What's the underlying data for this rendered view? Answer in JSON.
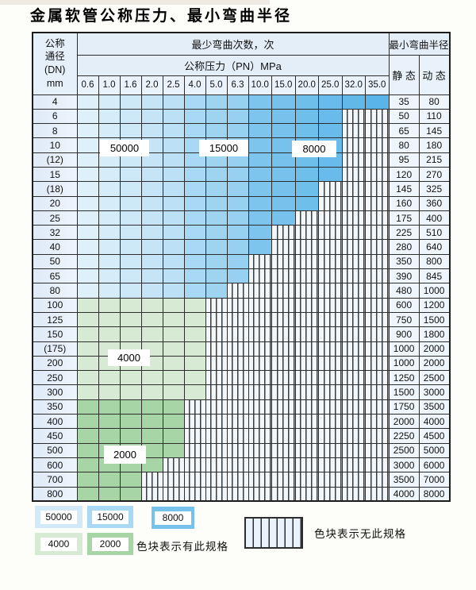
{
  "title": "金属软管公称压力、最小弯曲半径",
  "table": {
    "header": {
      "dn_lines": [
        "公称",
        "通径",
        "(DN)",
        "mm"
      ],
      "bend_cycles_label": "最少弯曲次数，次",
      "pressure_label": "公称压力（PN）MPa",
      "radius_label": "最小弯曲半径",
      "static_label": "静 态",
      "dynamic_label": "动 态",
      "pressures": [
        "0.6",
        "1.0",
        "1.6",
        "2.0",
        "2.5",
        "4.0",
        "5.0",
        "6.3",
        "10.0",
        "15.0",
        "20.0",
        "25.0",
        "32.0",
        "35.0"
      ]
    },
    "rows": [
      {
        "dn": "4",
        "through": 14,
        "zone": "blue",
        "static": "35",
        "dynamic": "80"
      },
      {
        "dn": "6",
        "through": 12,
        "zone": "blue",
        "static": "50",
        "dynamic": "110"
      },
      {
        "dn": "8",
        "through": 12,
        "zone": "blue",
        "static": "65",
        "dynamic": "145"
      },
      {
        "dn": "10",
        "through": 12,
        "zone": "blue",
        "static": "80",
        "dynamic": "180"
      },
      {
        "dn": "(12)",
        "through": 12,
        "zone": "blue",
        "static": "95",
        "dynamic": "215"
      },
      {
        "dn": "15",
        "through": 12,
        "zone": "blue",
        "static": "120",
        "dynamic": "270"
      },
      {
        "dn": "(18)",
        "through": 11,
        "zone": "blue",
        "static": "145",
        "dynamic": "325"
      },
      {
        "dn": "20",
        "through": 11,
        "zone": "blue",
        "static": "160",
        "dynamic": "360"
      },
      {
        "dn": "25",
        "through": 10,
        "zone": "blue",
        "static": "175",
        "dynamic": "400"
      },
      {
        "dn": "32",
        "through": 9,
        "zone": "blue",
        "static": "225",
        "dynamic": "510"
      },
      {
        "dn": "40",
        "through": 9,
        "zone": "blue",
        "static": "280",
        "dynamic": "640"
      },
      {
        "dn": "50",
        "through": 8,
        "zone": "blue",
        "static": "350",
        "dynamic": "800"
      },
      {
        "dn": "65",
        "through": 8,
        "zone": "blue",
        "static": "390",
        "dynamic": "845"
      },
      {
        "dn": "80",
        "through": 7,
        "zone": "blue",
        "static": "480",
        "dynamic": "1000"
      },
      {
        "dn": "100",
        "through": 6,
        "zone": "green-light",
        "static": "600",
        "dynamic": "1200"
      },
      {
        "dn": "125",
        "through": 6,
        "zone": "green-light",
        "static": "750",
        "dynamic": "1500"
      },
      {
        "dn": "150",
        "through": 6,
        "zone": "green-light",
        "static": "900",
        "dynamic": "1800"
      },
      {
        "dn": "(175)",
        "through": 6,
        "zone": "green-light",
        "static": "1000",
        "dynamic": "2000"
      },
      {
        "dn": "200",
        "through": 6,
        "zone": "green-light",
        "static": "1000",
        "dynamic": "2000"
      },
      {
        "dn": "250",
        "through": 6,
        "zone": "green-light",
        "static": "1250",
        "dynamic": "2500"
      },
      {
        "dn": "300",
        "through": 6,
        "zone": "green-light",
        "static": "1500",
        "dynamic": "3000"
      },
      {
        "dn": "350",
        "through": 5,
        "zone": "green-dark",
        "static": "1750",
        "dynamic": "3500"
      },
      {
        "dn": "400",
        "through": 5,
        "zone": "green-dark",
        "static": "2000",
        "dynamic": "4000"
      },
      {
        "dn": "450",
        "through": 5,
        "zone": "green-dark",
        "static": "2250",
        "dynamic": "4500"
      },
      {
        "dn": "500",
        "through": 5,
        "zone": "green-dark",
        "static": "2500",
        "dynamic": "5000"
      },
      {
        "dn": "600",
        "through": 4,
        "zone": "green-dark",
        "static": "3000",
        "dynamic": "6000"
      },
      {
        "dn": "700",
        "through": 3,
        "zone": "green-dark",
        "static": "3500",
        "dynamic": "7000"
      },
      {
        "dn": "800",
        "through": 3,
        "zone": "green-dark",
        "static": "4000",
        "dynamic": "8000"
      }
    ]
  },
  "zone_labels": [
    {
      "text": "50000"
    },
    {
      "text": "15000"
    },
    {
      "text": "8000"
    },
    {
      "text": "4000"
    },
    {
      "text": "2000"
    }
  ],
  "colors": {
    "cycles_50000": "#d2e9f8",
    "cycles_15000": "#a8d8f3",
    "cycles_8000": "#77c2ed",
    "cycles_4000": "#d7ebd4",
    "cycles_2000": "#a8d5a5"
  },
  "legend": {
    "swatches": [
      {
        "label": "50000",
        "color": "#d2e9f8"
      },
      {
        "label": "15000",
        "color": "#a8d8f3"
      },
      {
        "label": "8000",
        "color": "#77c2ed"
      },
      {
        "label": "4000",
        "color": "#d7ebd4"
      },
      {
        "label": "2000",
        "color": "#a8d5a5"
      }
    ],
    "has_spec_text": "色块表示有此规格",
    "no_spec_text": "色块表示无此规格"
  }
}
